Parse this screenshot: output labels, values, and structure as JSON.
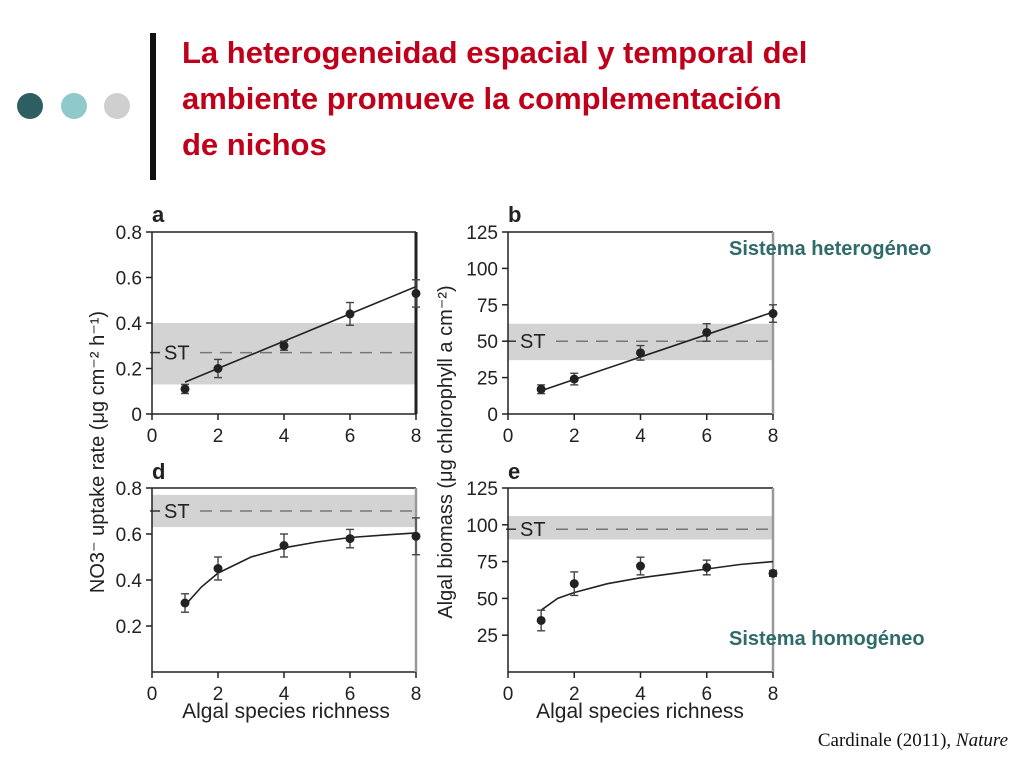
{
  "slide": {
    "title_lines": [
      "La heterogeneidad espacial y temporal del",
      "ambiente promueve la complementación",
      "de nichos"
    ],
    "accent_colors": [
      "#2e5e62",
      "#8fc9cc",
      "#cfcfcf"
    ],
    "title_color": "#c0001a",
    "annotation_top": "Sistema heterogéneo",
    "annotation_bottom": "Sistema homogéneo",
    "citation_text": "Cardinale (2011),",
    "citation_source": "Nature"
  },
  "figure": {
    "ylabel_left": "NO3⁻ uptake rate (μg cm⁻² h⁻¹)",
    "ylabel_right": "Algal biomass (μg chlorophyll a cm⁻²)",
    "xlabel": "Algal species richness",
    "st_label": "ST"
  },
  "chart_data": [
    {
      "panel": "a",
      "type": "scatter",
      "fit": "linear",
      "xlim": [
        0,
        8
      ],
      "ylim": [
        0,
        0.8
      ],
      "xticks": [
        0,
        2,
        4,
        6,
        8
      ],
      "yticks": [
        0,
        0.2,
        0.4,
        0.6,
        0.8
      ],
      "x": [
        1,
        2,
        4,
        6,
        8
      ],
      "y": [
        0.11,
        0.2,
        0.3,
        0.44,
        0.53
      ],
      "err": [
        0.02,
        0.04,
        0.02,
        0.05,
        0.06
      ],
      "fit_line": [
        [
          1,
          0.14
        ],
        [
          8,
          0.56
        ]
      ],
      "st": {
        "value": 0.27,
        "band": [
          0.13,
          0.4
        ]
      }
    },
    {
      "panel": "b",
      "type": "scatter",
      "fit": "linear",
      "xlim": [
        0,
        8
      ],
      "ylim": [
        0,
        125
      ],
      "xticks": [
        0,
        2,
        4,
        6,
        8
      ],
      "yticks": [
        0,
        25,
        50,
        75,
        100,
        125
      ],
      "x": [
        1,
        2,
        4,
        6,
        8
      ],
      "y": [
        17,
        24,
        42,
        56,
        69
      ],
      "err": [
        3,
        4,
        5,
        6,
        6
      ],
      "fit_line": [
        [
          1,
          16
        ],
        [
          8,
          70
        ]
      ],
      "st": {
        "value": 50,
        "band": [
          37,
          62
        ]
      }
    },
    {
      "panel": "d",
      "type": "scatter",
      "fit": "saturating",
      "xlim": [
        0,
        8
      ],
      "ylim": [
        0,
        0.8
      ],
      "xticks": [
        0,
        2,
        4,
        6,
        8
      ],
      "yticks": [
        0.2,
        0.4,
        0.6,
        0.8
      ],
      "x": [
        1,
        2,
        4,
        6,
        8
      ],
      "y": [
        0.3,
        0.45,
        0.55,
        0.58,
        0.59
      ],
      "err": [
        0.04,
        0.05,
        0.05,
        0.04,
        0.08
      ],
      "fit_line": [
        [
          1,
          0.29
        ],
        [
          1.5,
          0.37
        ],
        [
          2,
          0.43
        ],
        [
          3,
          0.5
        ],
        [
          4,
          0.54
        ],
        [
          5,
          0.565
        ],
        [
          6,
          0.585
        ],
        [
          7,
          0.595
        ],
        [
          8,
          0.605
        ]
      ],
      "st": {
        "value": 0.7,
        "band": [
          0.63,
          0.77
        ]
      }
    },
    {
      "panel": "e",
      "type": "scatter",
      "fit": "saturating",
      "xlim": [
        0,
        8
      ],
      "ylim": [
        0,
        125
      ],
      "xticks": [
        0,
        2,
        4,
        6,
        8
      ],
      "yticks": [
        25,
        50,
        75,
        100,
        125
      ],
      "x": [
        1,
        2,
        4,
        6,
        8
      ],
      "y": [
        35,
        60,
        72,
        71,
        67
      ],
      "err": [
        7,
        8,
        6,
        5,
        2
      ],
      "fit_line": [
        [
          1,
          42
        ],
        [
          1.5,
          50
        ],
        [
          2,
          54
        ],
        [
          3,
          60
        ],
        [
          4,
          64
        ],
        [
          5,
          67
        ],
        [
          6,
          70
        ],
        [
          7,
          73
        ],
        [
          8,
          75
        ]
      ],
      "st": {
        "value": 97,
        "band": [
          90,
          106
        ]
      }
    }
  ]
}
